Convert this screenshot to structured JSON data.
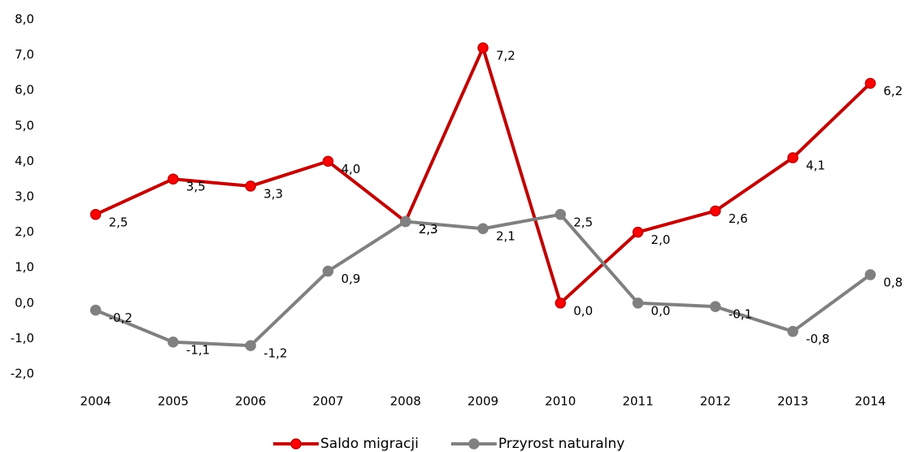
{
  "chart_data": {
    "type": "line",
    "categories": [
      "2004",
      "2005",
      "2006",
      "2007",
      "2008",
      "2009",
      "2010",
      "2011",
      "2012",
      "2013",
      "2014"
    ],
    "series": [
      {
        "name": "Saldo migracji",
        "color": "#c00000",
        "marker_color": "#ff0000",
        "values": [
          2.5,
          3.5,
          3.3,
          4.0,
          2.3,
          7.2,
          0.0,
          2.0,
          2.6,
          4.1,
          6.2
        ],
        "value_labels": [
          "2,5",
          "3,5",
          "3,3",
          "4,0",
          "2,3",
          "7,2",
          "0,0",
          "2,0",
          "2,6",
          "4,1",
          "6,2"
        ]
      },
      {
        "name": "Przyrost naturalny",
        "color": "#808080",
        "marker_color": "#808080",
        "values": [
          -0.2,
          -1.1,
          -1.2,
          0.9,
          2.3,
          2.1,
          2.5,
          0.0,
          -0.1,
          -0.8,
          0.8
        ],
        "value_labels": [
          "-0,2",
          "-1,1",
          "-1,2",
          "0,9",
          "2,3",
          "2,1",
          "2,5",
          "0,0",
          "-0,1",
          "-0,8",
          "0,8"
        ]
      }
    ],
    "ylim": [
      -2,
      8
    ],
    "yticks": [
      {
        "value": -2,
        "label": "-2,0"
      },
      {
        "value": -1,
        "label": "-1,0"
      },
      {
        "value": 0,
        "label": "0,0"
      },
      {
        "value": 1,
        "label": "1,0"
      },
      {
        "value": 2,
        "label": "2,0"
      },
      {
        "value": 3,
        "label": "3,0"
      },
      {
        "value": 4,
        "label": "4,0"
      },
      {
        "value": 5,
        "label": "5,0"
      },
      {
        "value": 6,
        "label": "6,0"
      },
      {
        "value": 7,
        "label": "7,0"
      },
      {
        "value": 8,
        "label": "8,0"
      }
    ],
    "legend": "bottom"
  }
}
